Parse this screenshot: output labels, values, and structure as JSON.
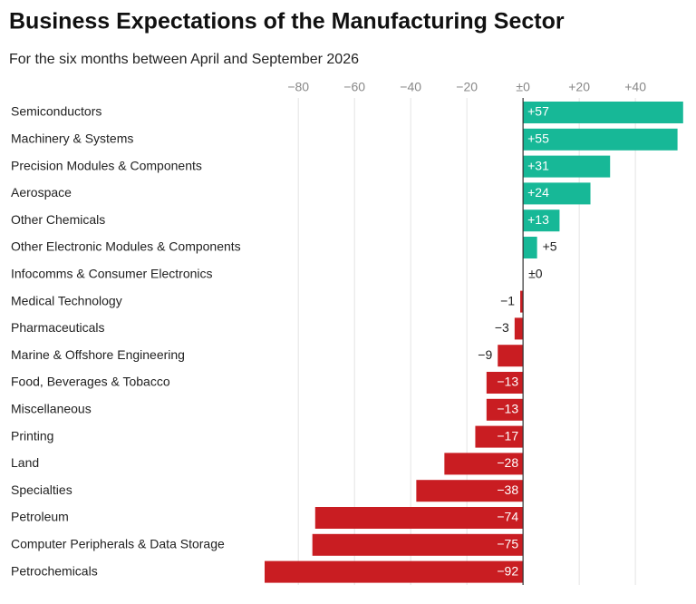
{
  "chart_data": {
    "type": "bar",
    "orientation": "horizontal",
    "title": "Business Expectations of the Manufacturing Sector",
    "subtitle": "For the six months between April and September 2026",
    "categories": [
      "Semiconductors",
      "Machinery & Systems",
      "Precision Modules & Components",
      "Aerospace",
      "Other Chemicals",
      "Other Electronic Modules & Components",
      "Infocomms & Consumer Electronics",
      "Medical Technology",
      "Pharmaceuticals",
      "Marine & Offshore Engineering",
      "Food, Beverages & Tobacco",
      "Miscellaneous",
      "Printing",
      "Land",
      "Specialties",
      "Petroleum",
      "Computer Peripherals & Data Storage",
      "Petrochemicals"
    ],
    "values": [
      57,
      55,
      31,
      24,
      13,
      5,
      0,
      -1,
      -3,
      -9,
      -13,
      -13,
      -17,
      -28,
      -38,
      -74,
      -75,
      -92
    ],
    "value_labels": [
      "+57",
      "+55",
      "+31",
      "+24",
      "+13",
      "+5",
      "±0",
      "−1",
      "−3",
      "−9",
      "−13",
      "−13",
      "−17",
      "−28",
      "−38",
      "−74",
      "−75",
      "−92"
    ],
    "positive_color": "#17b897",
    "negative_color": "#c91d22",
    "xlim": [
      -92,
      59
    ],
    "xticks": [
      {
        "value": -80,
        "label": "−80"
      },
      {
        "value": -60,
        "label": "−60"
      },
      {
        "value": -40,
        "label": "−40"
      },
      {
        "value": -20,
        "label": "−20"
      },
      {
        "value": 0,
        "label": "±0"
      },
      {
        "value": 20,
        "label": "+20"
      },
      {
        "value": 40,
        "label": "+40"
      }
    ],
    "grid": true
  }
}
